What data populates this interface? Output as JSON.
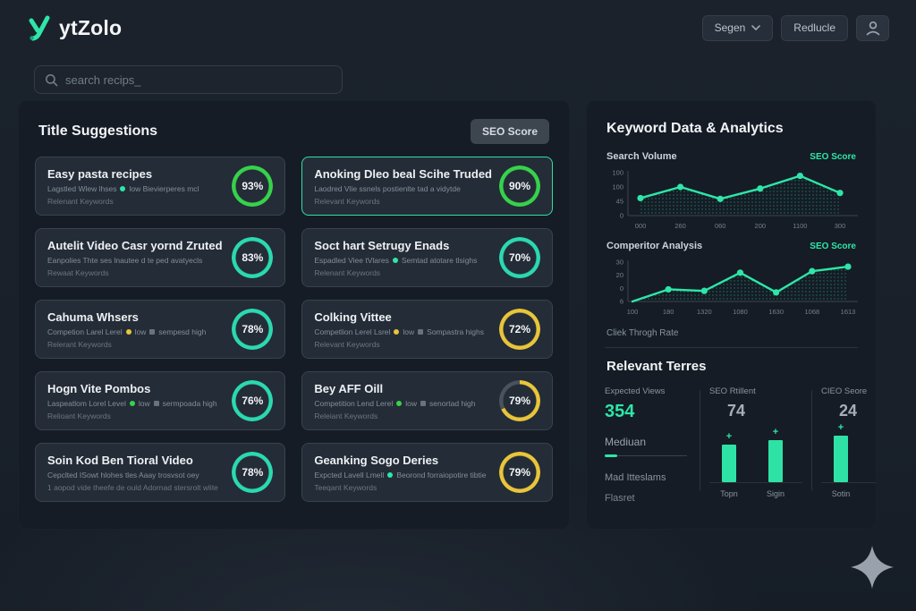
{
  "header": {
    "logo": "ytZolo",
    "segen": "Segen",
    "redlucle": "Redlucle"
  },
  "search": {
    "placeholder": "search recips_"
  },
  "icons": {
    "logo": "teal-check-swoosh",
    "search": "magnifier",
    "dropdown": "chevron-down",
    "profile": "person",
    "assistant": "sparkle-star"
  },
  "colors": {
    "accent_teal": "#2ee6a8",
    "accent_green": "#36d24b",
    "accent_yellow": "#e8c53a",
    "ring_grey": "#4a525c"
  },
  "suggestions": {
    "heading": "Title Suggestions",
    "seo_button": "SEO Score",
    "cards": [
      {
        "title": "Easy pasta recipes",
        "meta": [
          {
            "text": "Lagstled Wlew lhses"
          },
          {
            "dot": "#2ee6a8"
          },
          {
            "text": "low  Bievierperes mcl"
          }
        ],
        "line2": "Relenant Keywords",
        "score": "93%",
        "ring_color": "#36d24b",
        "ring_fill": 1,
        "highlighted": false
      },
      {
        "title": "Anoking Dleo beal Scihe Truded",
        "meta": [
          {
            "text": "Laodred Vlie ssnels postienlte tad a vidytde"
          }
        ],
        "line2": "Relevant Keywords",
        "score": "90%",
        "ring_color": "#36d24b",
        "ring_fill": 1,
        "highlighted": true
      },
      {
        "title": "Autelit Video Casr yornd Zruted",
        "meta": [
          {
            "text": "Eanpolies Thte ses lnautee d te ped avatyecls"
          }
        ],
        "line2": "Rewaat Keywords",
        "score": "83%",
        "ring_color": "#2bd9b0",
        "ring_fill": 1,
        "highlighted": false
      },
      {
        "title": "Soct hart Setrugy Enads",
        "meta": [
          {
            "text": "Espadled Viee tVlares"
          },
          {
            "dot": "#2ee6a8"
          },
          {
            "text": "Semtad atotare tlsighs"
          }
        ],
        "line2": "Relenant Keywords",
        "score": "70%",
        "ring_color": "#2bd9b0",
        "ring_fill": 1,
        "highlighted": false
      },
      {
        "title": "Cahuma Whsers",
        "meta": [
          {
            "text": "Competion Larel Lerel"
          },
          {
            "dot": "#e8c53a"
          },
          {
            "text": "low"
          },
          {
            "square": true
          },
          {
            "text": "sempesd high"
          }
        ],
        "line2": "Relerant Keywords",
        "score": "78%",
        "ring_color": "#2bd9b0",
        "ring_fill": 1,
        "highlighted": false
      },
      {
        "title": "Colking Vittee",
        "meta": [
          {
            "text": "Competlion Lerel Lsrel"
          },
          {
            "dot": "#e8c53a"
          },
          {
            "text": "low"
          },
          {
            "square": true
          },
          {
            "text": "Sompastra highs"
          }
        ],
        "line2": "Relevant Keywords",
        "score": "72%",
        "ring_color": "#e8c53a",
        "ring_fill": 1,
        "highlighted": false
      },
      {
        "title": "Hogn Vite Pombos",
        "meta": [
          {
            "text": "Laspeatlom Lorel Level"
          },
          {
            "dot": "#36d24b"
          },
          {
            "text": "low"
          },
          {
            "square": true
          },
          {
            "text": "sermpoada high"
          }
        ],
        "line2": "Relioant Keywords",
        "score": "76%",
        "ring_color": "#2bd9b0",
        "ring_fill": 1,
        "highlighted": false
      },
      {
        "title": "Bey AFF Oill",
        "meta": [
          {
            "text": "Competition Lend Lerel"
          },
          {
            "dot": "#36d24b"
          },
          {
            "text": "low"
          },
          {
            "square": true
          },
          {
            "text": "senortad high"
          }
        ],
        "line2": "Releiant Keywords",
        "score": "79%",
        "ring_color": "#e8c53a",
        "ring_fill": 0.68,
        "highlighted": false
      },
      {
        "title": "Soin Kod Ben Tioral Video",
        "meta": [
          {
            "text": "Cepclted ISowt hlohes tles Aaay trosvsot oey"
          }
        ],
        "line2": "1 aopod vide theefe de ould Adornad stersrolt wlite",
        "score": "78%",
        "ring_color": "#2bd9b0",
        "ring_fill": 1,
        "highlighted": false
      },
      {
        "title": "Geanking Sogo Deries",
        "meta": [
          {
            "text": "Expcted Lavell Lmell"
          },
          {
            "dot": "#2ee6a8"
          },
          {
            "text": "Beorond forraiopotire tibtie"
          }
        ],
        "line2": "Teeqant Keywords",
        "score": "79%",
        "ring_color": "#e8c53a",
        "ring_fill": 1,
        "highlighted": false
      }
    ]
  },
  "analytics": {
    "heading": "Keyword Data & Analytics",
    "search_volume_label": "Search Volume",
    "competitor_label": "Comperitor Analysis",
    "seo_score_badge": "SEO Score",
    "ctr_label": "Cliek Throgh Rate",
    "relevant_heading": "Relevant Terres",
    "col1": {
      "label": "Expected Views",
      "value": "354",
      "median": "Mediuan",
      "sub1": "Mad Itteslams",
      "sub2": "Flasret"
    },
    "col2": {
      "label": "SEO Rtillent",
      "value": "74",
      "bars": [
        {
          "label": "Topn",
          "value": 42
        },
        {
          "label": "Sigin",
          "value": 47
        }
      ]
    },
    "col3": {
      "label": "CIEO Seore",
      "value": "24",
      "bars": [
        {
          "label": "Sotin",
          "value": 52
        }
      ]
    }
  },
  "chart_data": [
    {
      "type": "line",
      "title": "Search Volume",
      "legend": "SEO Score",
      "x_ticks": [
        "000",
        "260",
        "060",
        "200",
        "1100",
        "300"
      ],
      "values": [
        44,
        72,
        42,
        68,
        100,
        57
      ],
      "y_ticks": [
        "100",
        "100",
        "45",
        "0"
      ],
      "ylim": [
        0,
        108
      ],
      "line_color": "#2ee6a8",
      "area": "dotted",
      "grid": false
    },
    {
      "type": "line",
      "title": "Comperitor Analysis",
      "legend": "SEO Score",
      "x_ticks": [
        "100",
        "180",
        "1320",
        "1080",
        "1630",
        "1068",
        "1613"
      ],
      "values": [
        0,
        8,
        7,
        19,
        6,
        20,
        23
      ],
      "y_ticks": [
        "30",
        "20",
        "0",
        "6"
      ],
      "ylim": [
        0,
        26
      ],
      "line_color": "#2ee6a8",
      "area": "dotted",
      "grid": false,
      "first_point_dot": false
    }
  ]
}
